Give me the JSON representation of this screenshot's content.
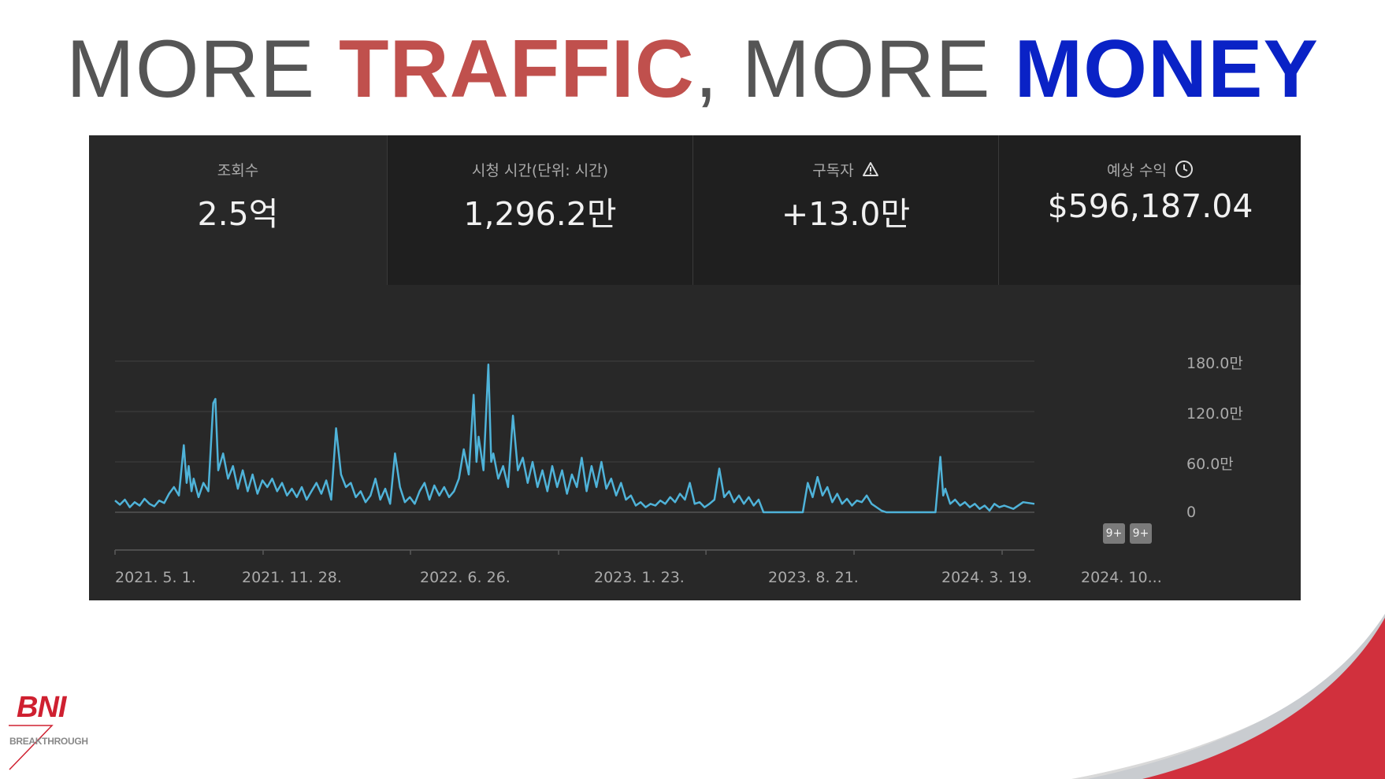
{
  "headline": {
    "part1": "MORE ",
    "part2": "TRAFFIC",
    "part3": ", MORE ",
    "part4": "MONEY"
  },
  "colors": {
    "traffic": "#c0504d",
    "money": "#0a22c6",
    "line": "#4fb3d9",
    "panel": "#282828",
    "brand_red": "#cf2030"
  },
  "metrics": [
    {
      "label": "조회수",
      "value": "2.5억",
      "icon": ""
    },
    {
      "label": "시청 시간(단위: 시간)",
      "value": "1,296.2만",
      "icon": ""
    },
    {
      "label": "구독자",
      "value": "+13.0만",
      "icon": "warning-triangle-icon"
    },
    {
      "label": "예상 수익",
      "value": "$596,187.04",
      "icon": "clock-icon"
    }
  ],
  "badges": [
    "9+",
    "9+"
  ],
  "logo": {
    "name": "BNI",
    "tagline": "BREAKTHROUGH"
  },
  "chart_data": {
    "type": "line",
    "series_name": "",
    "y_unit": "만",
    "ylim": [
      0,
      180
    ],
    "yticks": [
      {
        "value": 0,
        "label": "0"
      },
      {
        "value": 60,
        "label": "60.0만"
      },
      {
        "value": 120,
        "label": "120.0만"
      },
      {
        "value": 180,
        "label": "180.0만"
      }
    ],
    "x_range": [
      "2021-05-01",
      "2024-12-01"
    ],
    "xticks": [
      {
        "date": "2021-05-01",
        "label": "2021. 5. 1."
      },
      {
        "date": "2021-11-28",
        "label": "2021. 11. 28."
      },
      {
        "date": "2022-06-26",
        "label": "2022. 6. 26."
      },
      {
        "date": "2023-01-23",
        "label": "2023. 1. 23."
      },
      {
        "date": "2023-08-21",
        "label": "2023. 8. 21."
      },
      {
        "date": "2024-03-19",
        "label": "2024. 3. 19."
      },
      {
        "date": "2024-10-16",
        "label": "2024. 10..."
      }
    ],
    "grid": true,
    "points": [
      [
        "2021-05-01",
        14
      ],
      [
        "2021-05-08",
        9
      ],
      [
        "2021-05-15",
        15
      ],
      [
        "2021-05-22",
        6
      ],
      [
        "2021-05-29",
        12
      ],
      [
        "2021-06-05",
        8
      ],
      [
        "2021-06-12",
        16
      ],
      [
        "2021-06-19",
        10
      ],
      [
        "2021-06-26",
        7
      ],
      [
        "2021-07-03",
        14
      ],
      [
        "2021-07-10",
        11
      ],
      [
        "2021-07-17",
        22
      ],
      [
        "2021-07-24",
        30
      ],
      [
        "2021-07-31",
        20
      ],
      [
        "2021-08-07",
        80
      ],
      [
        "2021-08-11",
        35
      ],
      [
        "2021-08-14",
        55
      ],
      [
        "2021-08-18",
        25
      ],
      [
        "2021-08-21",
        40
      ],
      [
        "2021-08-28",
        18
      ],
      [
        "2021-09-04",
        35
      ],
      [
        "2021-09-11",
        25
      ],
      [
        "2021-09-18",
        130
      ],
      [
        "2021-09-21",
        135
      ],
      [
        "2021-09-25",
        50
      ],
      [
        "2021-10-02",
        70
      ],
      [
        "2021-10-09",
        40
      ],
      [
        "2021-10-16",
        55
      ],
      [
        "2021-10-23",
        28
      ],
      [
        "2021-10-30",
        50
      ],
      [
        "2021-11-06",
        25
      ],
      [
        "2021-11-13",
        45
      ],
      [
        "2021-11-20",
        22
      ],
      [
        "2021-11-27",
        38
      ],
      [
        "2021-12-04",
        30
      ],
      [
        "2021-12-11",
        40
      ],
      [
        "2021-12-18",
        25
      ],
      [
        "2021-12-25",
        35
      ],
      [
        "2022-01-01",
        20
      ],
      [
        "2022-01-08",
        28
      ],
      [
        "2022-01-15",
        18
      ],
      [
        "2022-01-22",
        30
      ],
      [
        "2022-01-29",
        15
      ],
      [
        "2022-02-05",
        25
      ],
      [
        "2022-02-12",
        35
      ],
      [
        "2022-02-19",
        22
      ],
      [
        "2022-02-26",
        38
      ],
      [
        "2022-03-05",
        15
      ],
      [
        "2022-03-12",
        100
      ],
      [
        "2022-03-19",
        45
      ],
      [
        "2022-03-26",
        30
      ],
      [
        "2022-04-02",
        35
      ],
      [
        "2022-04-09",
        18
      ],
      [
        "2022-04-16",
        25
      ],
      [
        "2022-04-23",
        12
      ],
      [
        "2022-04-30",
        20
      ],
      [
        "2022-05-07",
        40
      ],
      [
        "2022-05-14",
        15
      ],
      [
        "2022-05-21",
        28
      ],
      [
        "2022-05-28",
        10
      ],
      [
        "2022-06-04",
        70
      ],
      [
        "2022-06-11",
        30
      ],
      [
        "2022-06-18",
        12
      ],
      [
        "2022-06-25",
        18
      ],
      [
        "2022-07-02",
        10
      ],
      [
        "2022-07-09",
        25
      ],
      [
        "2022-07-16",
        35
      ],
      [
        "2022-07-23",
        15
      ],
      [
        "2022-07-30",
        32
      ],
      [
        "2022-08-06",
        20
      ],
      [
        "2022-08-13",
        30
      ],
      [
        "2022-08-20",
        18
      ],
      [
        "2022-08-27",
        25
      ],
      [
        "2022-09-03",
        40
      ],
      [
        "2022-09-10",
        75
      ],
      [
        "2022-09-17",
        45
      ],
      [
        "2022-09-24",
        140
      ],
      [
        "2022-09-28",
        60
      ],
      [
        "2022-10-01",
        90
      ],
      [
        "2022-10-08",
        50
      ],
      [
        "2022-10-15",
        176
      ],
      [
        "2022-10-19",
        60
      ],
      [
        "2022-10-22",
        70
      ],
      [
        "2022-10-29",
        40
      ],
      [
        "2022-11-05",
        55
      ],
      [
        "2022-11-12",
        30
      ],
      [
        "2022-11-19",
        115
      ],
      [
        "2022-11-26",
        50
      ],
      [
        "2022-12-03",
        65
      ],
      [
        "2022-12-10",
        35
      ],
      [
        "2022-12-17",
        60
      ],
      [
        "2022-12-24",
        30
      ],
      [
        "2022-12-31",
        50
      ],
      [
        "2023-01-07",
        25
      ],
      [
        "2023-01-14",
        55
      ],
      [
        "2023-01-21",
        30
      ],
      [
        "2023-01-28",
        50
      ],
      [
        "2023-02-04",
        22
      ],
      [
        "2023-02-11",
        45
      ],
      [
        "2023-02-18",
        30
      ],
      [
        "2023-02-25",
        65
      ],
      [
        "2023-03-04",
        25
      ],
      [
        "2023-03-11",
        55
      ],
      [
        "2023-03-18",
        30
      ],
      [
        "2023-03-25",
        60
      ],
      [
        "2023-04-01",
        28
      ],
      [
        "2023-04-08",
        40
      ],
      [
        "2023-04-15",
        20
      ],
      [
        "2023-04-22",
        35
      ],
      [
        "2023-04-29",
        15
      ],
      [
        "2023-05-06",
        20
      ],
      [
        "2023-05-13",
        8
      ],
      [
        "2023-05-20",
        12
      ],
      [
        "2023-05-27",
        6
      ],
      [
        "2023-06-03",
        10
      ],
      [
        "2023-06-10",
        8
      ],
      [
        "2023-06-17",
        14
      ],
      [
        "2023-06-24",
        10
      ],
      [
        "2023-07-01",
        18
      ],
      [
        "2023-07-08",
        12
      ],
      [
        "2023-07-15",
        22
      ],
      [
        "2023-07-22",
        15
      ],
      [
        "2023-07-29",
        35
      ],
      [
        "2023-08-05",
        10
      ],
      [
        "2023-08-12",
        12
      ],
      [
        "2023-08-19",
        6
      ],
      [
        "2023-08-26",
        10
      ],
      [
        "2023-09-02",
        15
      ],
      [
        "2023-09-09",
        52
      ],
      [
        "2023-09-16",
        18
      ],
      [
        "2023-09-23",
        25
      ],
      [
        "2023-09-30",
        12
      ],
      [
        "2023-10-07",
        20
      ],
      [
        "2023-10-14",
        10
      ],
      [
        "2023-10-21",
        18
      ],
      [
        "2023-10-28",
        8
      ],
      [
        "2023-11-04",
        15
      ],
      [
        "2023-11-11",
        0
      ],
      [
        "2023-12-01",
        0
      ],
      [
        "2023-12-31",
        0
      ],
      [
        "2024-01-06",
        0
      ],
      [
        "2024-01-13",
        35
      ],
      [
        "2024-01-20",
        18
      ],
      [
        "2024-01-27",
        42
      ],
      [
        "2024-02-03",
        20
      ],
      [
        "2024-02-10",
        30
      ],
      [
        "2024-02-17",
        12
      ],
      [
        "2024-02-24",
        22
      ],
      [
        "2024-03-02",
        10
      ],
      [
        "2024-03-09",
        16
      ],
      [
        "2024-03-16",
        8
      ],
      [
        "2024-03-23",
        14
      ],
      [
        "2024-03-30",
        12
      ],
      [
        "2024-04-06",
        20
      ],
      [
        "2024-04-13",
        10
      ],
      [
        "2024-04-20",
        6
      ],
      [
        "2024-04-27",
        2
      ],
      [
        "2024-05-04",
        0
      ],
      [
        "2024-06-01",
        0
      ],
      [
        "2024-07-01",
        0
      ],
      [
        "2024-07-13",
        0
      ],
      [
        "2024-07-20",
        66
      ],
      [
        "2024-07-24",
        20
      ],
      [
        "2024-07-27",
        28
      ],
      [
        "2024-08-03",
        10
      ],
      [
        "2024-08-10",
        15
      ],
      [
        "2024-08-17",
        8
      ],
      [
        "2024-08-24",
        12
      ],
      [
        "2024-08-31",
        6
      ],
      [
        "2024-09-07",
        10
      ],
      [
        "2024-09-14",
        4
      ],
      [
        "2024-09-21",
        8
      ],
      [
        "2024-09-28",
        2
      ],
      [
        "2024-10-05",
        10
      ],
      [
        "2024-10-12",
        6
      ],
      [
        "2024-10-19",
        8
      ],
      [
        "2024-11-01",
        4
      ],
      [
        "2024-11-15",
        12
      ],
      [
        "2024-12-01",
        10
      ]
    ]
  }
}
